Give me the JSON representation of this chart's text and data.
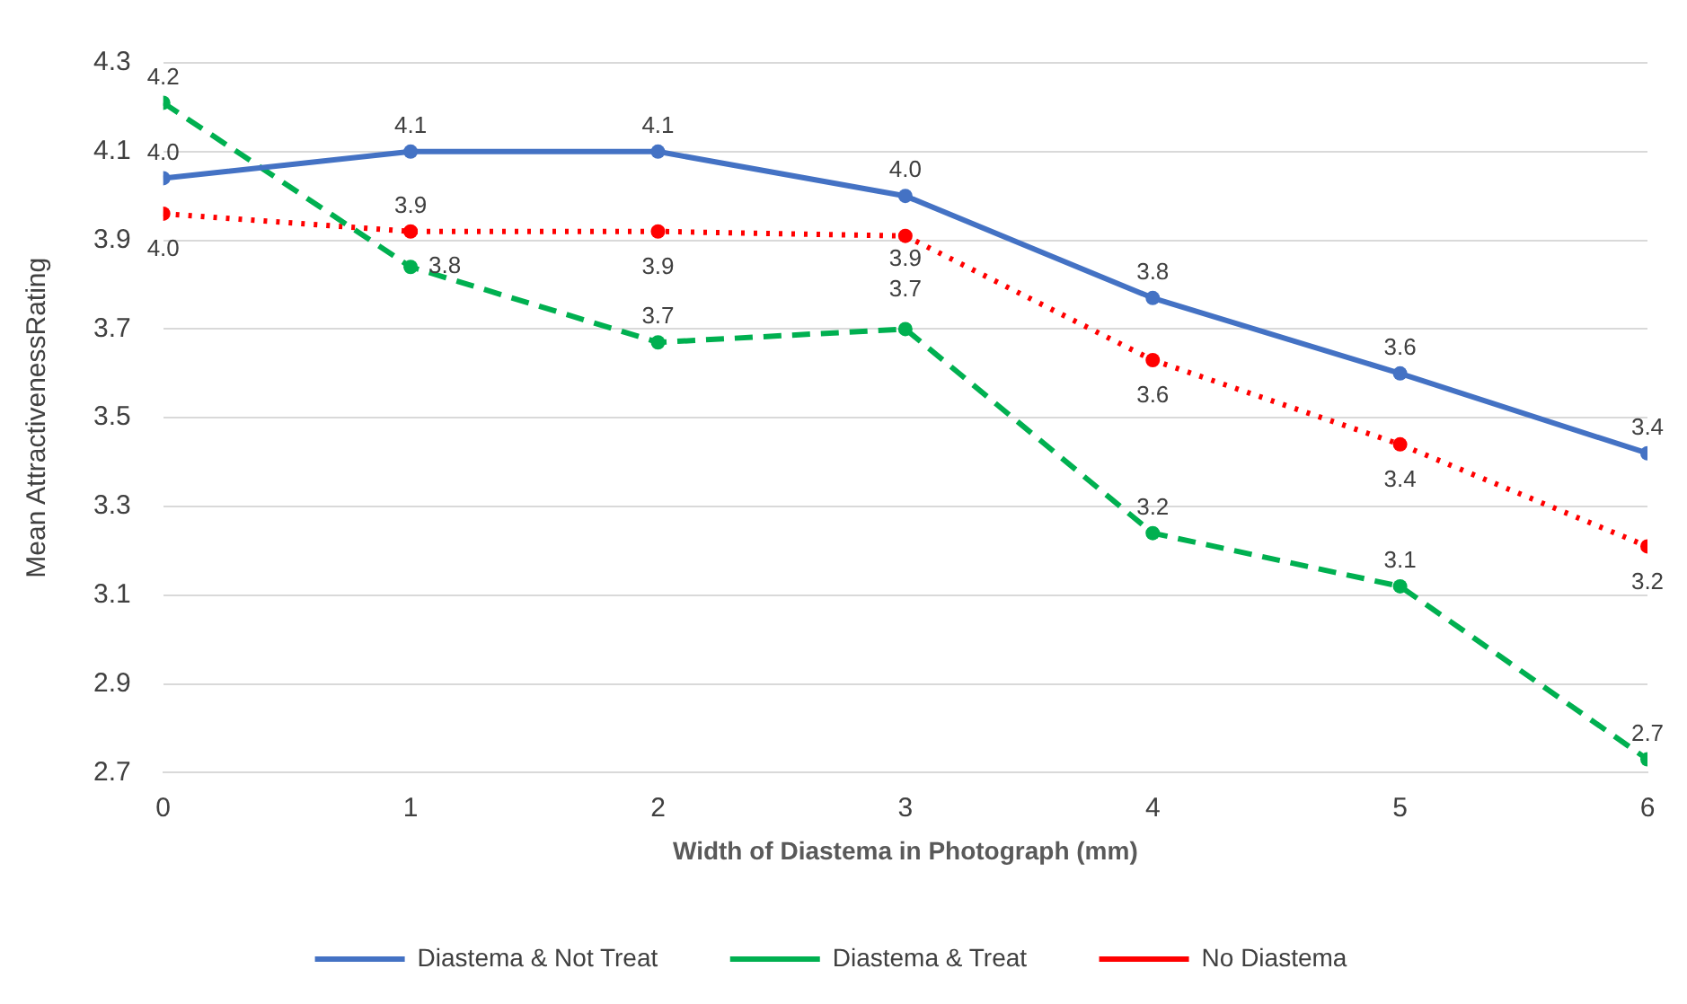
{
  "chart_data": {
    "type": "line",
    "xlabel": "Width of Diastema in Photograph (mm)",
    "ylabel": "Mean AttractivenessRating",
    "x": [
      0,
      1,
      2,
      3,
      4,
      5,
      6
    ],
    "xlim": [
      0,
      6
    ],
    "xticks": [
      0,
      1,
      2,
      3,
      4,
      5,
      6
    ],
    "ylim": [
      2.7,
      4.3
    ],
    "yticks": [
      2.7,
      2.9,
      3.1,
      3.3,
      3.5,
      3.7,
      3.9,
      4.1,
      4.3
    ],
    "grid": "y",
    "legend": "bottom",
    "marker": "circle",
    "series": [
      {
        "name": "Diastema & Not Treat",
        "color": "#4472c4",
        "line_style": "solid",
        "values": [
          4.04,
          4.1,
          4.1,
          4.0,
          3.77,
          3.6,
          3.42
        ],
        "value_labels": [
          "4.0",
          "4.1",
          "4.1",
          "4.0",
          "3.8",
          "3.6",
          "3.4"
        ]
      },
      {
        "name": "Diastema & Treat",
        "color": "#00b050",
        "line_style": "dashed",
        "values": [
          4.21,
          3.84,
          3.67,
          3.7,
          3.24,
          3.12,
          2.73
        ],
        "value_labels": [
          "4.2",
          "3.8",
          "3.7",
          "3.7",
          "3.2",
          "3.1",
          "2.7"
        ]
      },
      {
        "name": "No Diastema",
        "color": "#ff0000",
        "line_style": "dotted",
        "values": [
          3.96,
          3.92,
          3.92,
          3.91,
          3.63,
          3.44,
          3.21
        ],
        "value_labels": [
          "4.0",
          "3.9",
          "3.9",
          "3.9",
          "3.6",
          "3.4",
          "3.2"
        ]
      }
    ]
  }
}
